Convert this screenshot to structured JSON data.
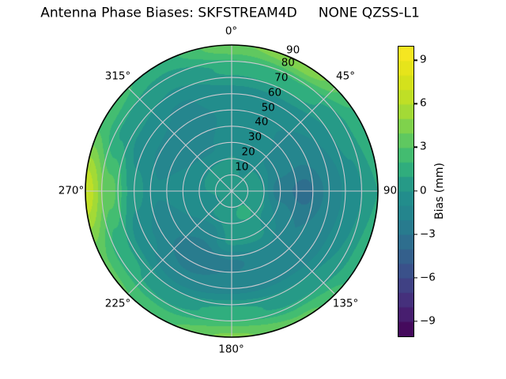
{
  "title": "Antenna Phase Biases: SKFSTREAM4D     NONE QZSS-L1",
  "chart_data": {
    "type": "heatmap",
    "projection": "polar",
    "title": "Antenna Phase Biases: SKFSTREAM4D     NONE QZSS-L1",
    "grid": "on",
    "angular_labels": [
      "0°",
      "45°",
      "90",
      "135°",
      "180°",
      "225°",
      "270°",
      "315°"
    ],
    "radial_tick_labels": [
      "10",
      "20",
      "30",
      "40",
      "50",
      "60",
      "70",
      "80",
      "90"
    ],
    "azimuth_deg": [
      0,
      30,
      60,
      90,
      120,
      150,
      180,
      210,
      240,
      270,
      300,
      330
    ],
    "zenith_deg": [
      0,
      15,
      30,
      45,
      60,
      75,
      90
    ],
    "bias_mm": [
      [
        0.3,
        0.3,
        0.3,
        0.3,
        0.3,
        0.3,
        0.3,
        0.3,
        0.3,
        0.3,
        0.3,
        0.3
      ],
      [
        0.2,
        -0.1,
        0.2,
        0.6,
        0.9,
        1.2,
        0.9,
        0.2,
        -0.2,
        0.0,
        0.1,
        0.2
      ],
      [
        -0.3,
        -0.6,
        -1.4,
        -2.6,
        -1.0,
        0.3,
        0.3,
        -1.7,
        -1.0,
        -0.6,
        -1.0,
        -1.2
      ],
      [
        -0.7,
        -0.9,
        -1.6,
        -3.4,
        -2.0,
        -1.4,
        -2.2,
        -3.0,
        -1.6,
        -0.9,
        -1.4,
        -1.6
      ],
      [
        -0.4,
        -0.4,
        -1.0,
        -1.8,
        -1.4,
        -1.2,
        -1.3,
        -1.8,
        -0.8,
        0.4,
        -0.6,
        -1.1
      ],
      [
        1.2,
        1.6,
        0.3,
        -0.3,
        0.0,
        0.6,
        1.4,
        0.6,
        1.2,
        3.4,
        0.8,
        0.1
      ],
      [
        3.8,
        4.8,
        1.8,
        1.0,
        1.6,
        3.2,
        4.2,
        2.8,
        3.2,
        6.8,
        2.6,
        1.6
      ]
    ],
    "colorbar": {
      "label": "Bias (mm)",
      "colormap": "viridis",
      "vmin": -10,
      "vmax": 10,
      "levels_step": 1,
      "ticks": [
        9,
        6,
        3,
        0,
        -3,
        -6,
        -9
      ],
      "tick_labels": [
        "9",
        "6",
        "3",
        "0",
        "−3",
        "−6",
        "−9"
      ]
    },
    "colors": {
      "grid_line": "#c9c9cf",
      "spine": "#000000",
      "background": "#ffffff"
    }
  }
}
